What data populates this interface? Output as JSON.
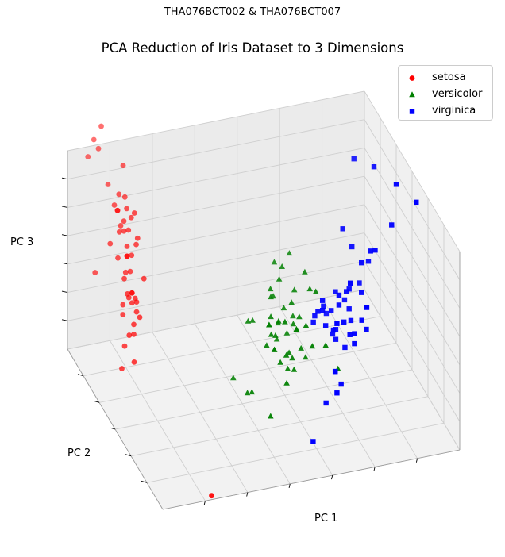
{
  "suptitle": "THA076BCT002 & THA076BCT007",
  "chart_data": {
    "type": "scatter",
    "title": "PCA Reduction of Iris Dataset to 3 Dimensions",
    "xlabel": "PC 1",
    "ylabel": "PC 2",
    "zlabel": "PC 3",
    "xlim": [
      -3.0,
      3.5
    ],
    "ylim": [
      -1.5,
      1.5
    ],
    "zlim": [
      -1.0,
      1.0
    ],
    "grid": true,
    "legend_position": "top-right",
    "series": [
      {
        "name": "setosa",
        "color": "#ff0000",
        "marker": "circle",
        "points": [
          [
            -2.6,
            0.3,
            0.9
          ],
          [
            -2.7,
            -0.2,
            0.4
          ],
          [
            -2.9,
            -0.1,
            0.2
          ],
          [
            -2.8,
            -0.3,
            0.1
          ],
          [
            -2.7,
            0.3,
            0.8
          ],
          [
            -2.3,
            0.7,
            0.9
          ],
          [
            -2.8,
            -0.1,
            0.4
          ],
          [
            -2.6,
            0.2,
            0.6
          ],
          [
            -3.0,
            -0.6,
            0.0
          ],
          [
            -2.7,
            -0.1,
            0.4
          ],
          [
            -2.5,
            0.6,
            1.0
          ],
          [
            -2.6,
            0.1,
            0.5
          ],
          [
            -2.8,
            -0.3,
            0.2
          ],
          [
            -3.2,
            -0.5,
            -0.1
          ],
          [
            -2.6,
            1.1,
            1.2
          ],
          [
            -2.4,
            1.3,
            1.3
          ],
          [
            -2.6,
            0.8,
            1.0
          ],
          [
            -2.6,
            0.3,
            0.8
          ],
          [
            -2.2,
            0.9,
            1.1
          ],
          [
            -2.6,
            0.5,
            0.9
          ],
          [
            -2.3,
            0.5,
            0.8
          ],
          [
            -2.6,
            0.4,
            0.8
          ],
          [
            -3.3,
            0.2,
            0.5
          ],
          [
            -2.3,
            0.1,
            0.4
          ],
          [
            -2.7,
            0.0,
            0.3
          ],
          [
            -2.6,
            -0.1,
            0.3
          ],
          [
            -2.5,
            0.2,
            0.6
          ],
          [
            -2.5,
            0.3,
            0.8
          ],
          [
            -2.6,
            0.2,
            0.7
          ],
          [
            -2.7,
            -0.1,
            0.3
          ],
          [
            -2.6,
            -0.1,
            0.2
          ],
          [
            -2.3,
            0.3,
            0.7
          ],
          [
            -2.9,
            1.0,
            1.2
          ],
          [
            -2.7,
            1.1,
            1.3
          ],
          [
            -2.7,
            -0.1,
            0.4
          ],
          [
            -2.8,
            0.0,
            0.5
          ],
          [
            -2.4,
            0.5,
            0.9
          ],
          [
            -2.9,
            0.3,
            0.7
          ],
          [
            -2.9,
            -0.3,
            0.1
          ],
          [
            -2.6,
            0.2,
            0.6
          ],
          [
            -2.8,
            0.2,
            0.6
          ],
          [
            -2.0,
            -1.6,
            -0.9
          ],
          [
            -3.0,
            -0.3,
            0.0
          ],
          [
            -2.4,
            0.2,
            0.7
          ],
          [
            -2.3,
            0.4,
            0.9
          ],
          [
            -2.6,
            -0.2,
            0.2
          ],
          [
            -2.6,
            0.6,
            0.9
          ],
          [
            -2.9,
            -0.1,
            0.3
          ],
          [
            -2.6,
            0.5,
            0.9
          ],
          [
            -2.7,
            0.1,
            0.5
          ]
        ]
      },
      {
        "name": "versicolor",
        "color": "#008000",
        "marker": "triangle",
        "points": [
          [
            1.3,
            0.7,
            0.0
          ],
          [
            0.9,
            0.3,
            -0.3
          ],
          [
            1.5,
            0.5,
            -0.1
          ],
          [
            0.2,
            -0.8,
            -0.4
          ],
          [
            1.1,
            0.1,
            -0.3
          ],
          [
            0.6,
            -0.4,
            -0.4
          ],
          [
            1.1,
            0.3,
            -0.4
          ],
          [
            -0.8,
            -1.0,
            -0.3
          ],
          [
            1.0,
            0.2,
            -0.2
          ],
          [
            0.0,
            -0.7,
            -0.1
          ],
          [
            -0.5,
            -1.3,
            -0.4
          ],
          [
            0.5,
            -0.1,
            -0.2
          ],
          [
            0.3,
            -0.6,
            0.1
          ],
          [
            1.0,
            -0.1,
            -0.5
          ],
          [
            -0.2,
            -0.3,
            0.0
          ],
          [
            0.9,
            0.6,
            0.0
          ],
          [
            0.6,
            -0.3,
            -0.4
          ],
          [
            0.2,
            -0.3,
            0.2
          ],
          [
            0.9,
            -0.6,
            -0.2
          ],
          [
            0.0,
            -0.6,
            0.0
          ],
          [
            1.1,
            -0.1,
            -0.6
          ],
          [
            0.4,
            0.0,
            0.1
          ],
          [
            1.4,
            -0.3,
            -0.4
          ],
          [
            0.9,
            -0.1,
            -0.3
          ],
          [
            0.8,
            0.3,
            0.0
          ],
          [
            1.0,
            0.5,
            0.0
          ],
          [
            1.4,
            0.2,
            -0.1
          ],
          [
            1.6,
            0.3,
            -0.2
          ],
          [
            0.9,
            -0.1,
            -0.3
          ],
          [
            -0.3,
            -0.3,
            0.0
          ],
          [
            0.0,
            -0.7,
            -0.1
          ],
          [
            -0.1,
            -0.6,
            -0.1
          ],
          [
            0.2,
            -0.3,
            0.0
          ],
          [
            1.6,
            -0.4,
            -0.6
          ],
          [
            0.5,
            -0.4,
            -0.5
          ],
          [
            0.9,
            0.2,
            -0.5
          ],
          [
            1.2,
            0.4,
            -0.2
          ],
          [
            0.9,
            -0.4,
            -0.1
          ],
          [
            0.3,
            -0.1,
            -0.2
          ],
          [
            0.2,
            -0.6,
            -0.3
          ],
          [
            0.5,
            -0.6,
            -0.4
          ],
          [
            0.9,
            0.0,
            -0.3
          ],
          [
            0.3,
            -0.4,
            0.0
          ],
          [
            -0.7,
            -1.0,
            -0.3
          ],
          [
            0.4,
            -0.5,
            -0.3
          ],
          [
            0.3,
            -0.1,
            -0.2
          ],
          [
            0.4,
            -0.2,
            -0.3
          ],
          [
            0.6,
            0.2,
            -0.1
          ],
          [
            -0.9,
            -0.7,
            -0.3
          ],
          [
            0.3,
            -0.3,
            -0.2
          ]
        ]
      },
      {
        "name": "virginica",
        "color": "#0000ff",
        "marker": "square",
        "points": [
          [
            2.5,
            0.0,
            -0.5
          ],
          [
            1.4,
            -0.6,
            -0.5
          ],
          [
            2.6,
            0.3,
            0.0
          ],
          [
            2.0,
            -0.2,
            -0.4
          ],
          [
            2.4,
            0.0,
            -0.4
          ],
          [
            3.4,
            0.5,
            0.2
          ],
          [
            0.5,
            -1.2,
            -0.8
          ],
          [
            2.9,
            0.3,
            0.1
          ],
          [
            2.3,
            -0.3,
            -0.1
          ],
          [
            2.9,
            0.8,
            -0.5
          ],
          [
            1.7,
            0.2,
            -0.3
          ],
          [
            1.8,
            -0.3,
            -0.2
          ],
          [
            2.2,
            0.2,
            -0.2
          ],
          [
            1.3,
            -0.8,
            -0.6
          ],
          [
            1.6,
            -0.5,
            -0.7
          ],
          [
            1.9,
            0.1,
            -0.5
          ],
          [
            1.9,
            0.0,
            -0.1
          ],
          [
            3.5,
            1.2,
            0.4
          ],
          [
            3.8,
            0.3,
            0.5
          ],
          [
            1.3,
            -0.8,
            0.1
          ],
          [
            2.4,
            0.4,
            -0.3
          ],
          [
            1.2,
            -0.6,
            -0.8
          ],
          [
            3.5,
            0.5,
            0.6
          ],
          [
            1.4,
            -0.2,
            0.0
          ],
          [
            2.3,
            0.4,
            -0.4
          ],
          [
            2.6,
            0.6,
            0.0
          ],
          [
            1.3,
            -0.2,
            -0.1
          ],
          [
            1.3,
            -0.1,
            -0.2
          ],
          [
            2.1,
            -0.2,
            -0.4
          ],
          [
            2.4,
            0.6,
            0.2
          ],
          [
            2.8,
            0.3,
            0.1
          ],
          [
            3.2,
            1.4,
            0.4
          ],
          [
            2.1,
            -0.2,
            -0.5
          ],
          [
            1.4,
            -0.2,
            -0.1
          ],
          [
            1.8,
            -0.5,
            0.3
          ],
          [
            3.1,
            0.8,
            -0.3
          ],
          [
            2.1,
            0.1,
            -0.7
          ],
          [
            1.9,
            0.0,
            -0.2
          ],
          [
            1.2,
            -0.2,
            -0.2
          ],
          [
            2.1,
            0.4,
            -0.3
          ],
          [
            2.3,
            0.2,
            -0.5
          ],
          [
            1.9,
            0.4,
            -0.5
          ],
          [
            1.4,
            -0.6,
            -0.5
          ],
          [
            2.6,
            0.3,
            -0.3
          ],
          [
            2.4,
            0.4,
            -0.5
          ],
          [
            1.9,
            0.2,
            -0.6
          ],
          [
            1.5,
            -0.4,
            -0.2
          ],
          [
            1.8,
            0.1,
            -0.3
          ],
          [
            1.9,
            0.1,
            -0.6
          ],
          [
            1.4,
            -0.3,
            -0.2
          ]
        ]
      }
    ]
  }
}
